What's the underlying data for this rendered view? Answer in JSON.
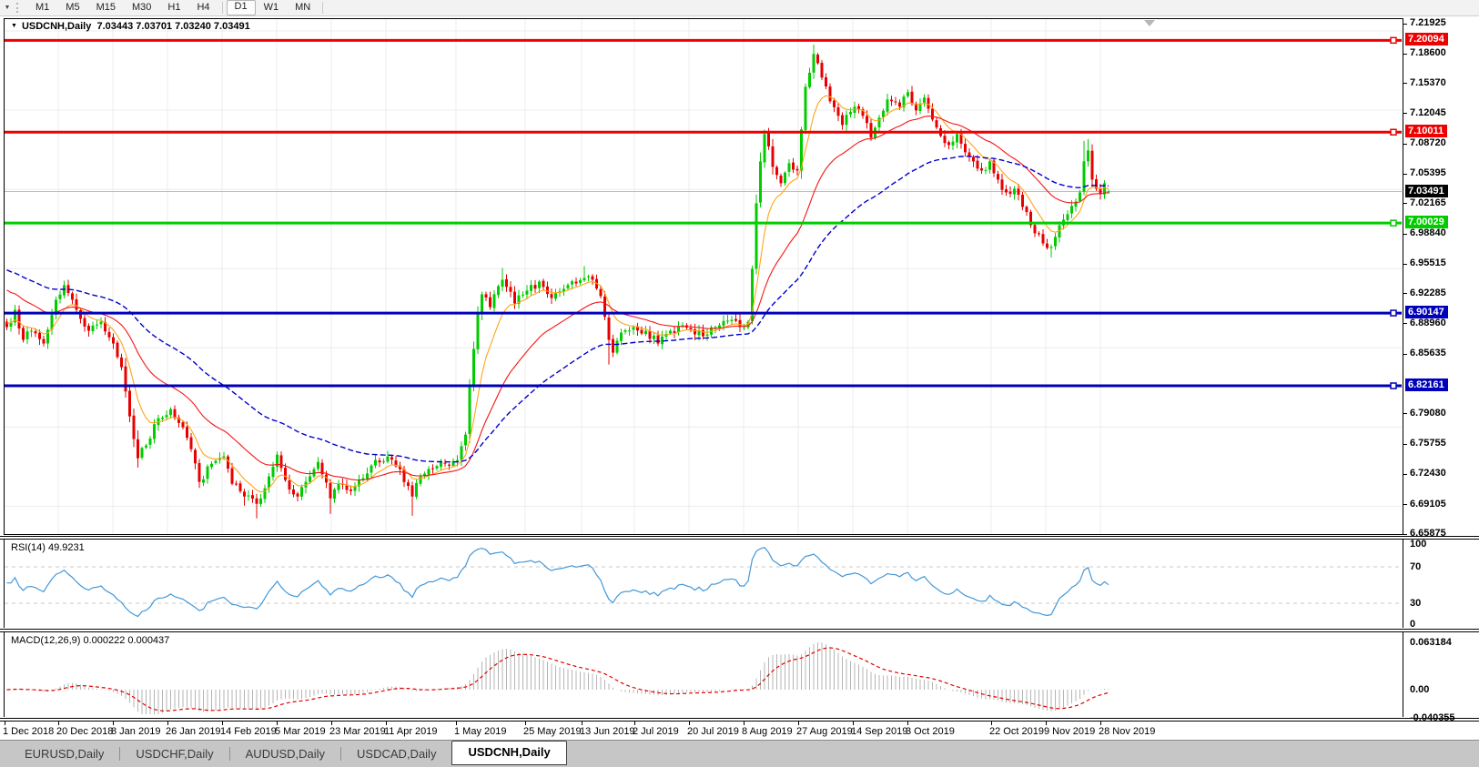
{
  "toolbar": {
    "timeframes": [
      "M1",
      "M5",
      "M15",
      "M30",
      "H1",
      "H4",
      "D1",
      "W1",
      "MN"
    ],
    "active_timeframe": "D1",
    "group_separator_after": "H4"
  },
  "icons": {
    "chart_dropdown": "▼",
    "title_marker": "▼",
    "shift_marker": "▼"
  },
  "chart": {
    "title_symbol": "USDCNH,Daily",
    "title_ohlc": "7.03443 7.03701 7.03240 7.03491"
  },
  "indicators": {
    "rsi_label": "RSI(14) 49.9231",
    "macd_label": "MACD(12,26,9) 0.000222 0.000437"
  },
  "tabs": {
    "items": [
      {
        "label": "EURUSD,Daily",
        "active": false
      },
      {
        "label": "USDCHF,Daily",
        "active": false
      },
      {
        "label": "AUDUSD,Daily",
        "active": false
      },
      {
        "label": "USDCAD,Daily",
        "active": false
      },
      {
        "label": "USDCNH,Daily",
        "active": true
      }
    ]
  },
  "colors": {
    "up_candle": "#00CC00",
    "down_candle": "#E80000",
    "hline_red": "#EE0000",
    "hline_green": "#00CC00",
    "hline_blue": "#0000BB",
    "current_price_line": "#BDBDBD",
    "grid": "#ECECEC",
    "rsi_line": "#4298D8",
    "rsi_levels": "#C8C8C8",
    "macd_hist": "#B4B4B4",
    "macd_signal": "#E00000"
  },
  "chart_data": {
    "type": "candlestick",
    "symbol": "USDCNH",
    "timeframe": "Daily",
    "last_bar": {
      "open": 7.03443,
      "high": 7.03701,
      "low": 7.0324,
      "close": 7.03491
    },
    "y_axis": {
      "tick_labels": [
        "7.21925",
        "7.18600",
        "7.15370",
        "7.12045",
        "7.08720",
        "7.05395",
        "7.02165",
        "6.98840",
        "6.95515",
        "6.92285",
        "6.88960",
        "6.85635",
        "6.79080",
        "6.75755",
        "6.72430",
        "6.69105",
        "6.65875"
      ]
    },
    "x_axis": {
      "labels": [
        [
          "1 Dec 2018",
          3
        ],
        [
          "20 Dec 2018",
          62
        ],
        [
          "8 Jan 2019",
          122
        ],
        [
          "26 Jan 2019",
          182
        ],
        [
          "14 Feb 2019",
          242
        ],
        [
          "5 Mar 2019",
          302
        ],
        [
          "23 Mar 2019",
          362
        ],
        [
          "11 Apr 2019",
          422
        ],
        [
          "1 May 2019",
          499
        ],
        [
          "25 May 2019",
          575
        ],
        [
          "13 Jun 2019",
          637
        ],
        [
          "2 Jul 2019",
          695
        ],
        [
          "20 Jul 2019",
          755
        ],
        [
          "8 Aug 2019",
          815
        ],
        [
          "27 Aug 2019",
          875
        ],
        [
          "14 Sep 2019",
          935
        ],
        [
          "3 Oct 2019",
          995
        ],
        [
          "22 Oct 2019",
          1087
        ],
        [
          "9 Nov 2019",
          1147
        ],
        [
          "28 Nov 2019",
          1207
        ]
      ]
    },
    "grid_h_prices": [
      7.2113,
      7.1243,
      7.0373,
      6.9503,
      6.8633,
      6.7763,
      6.6893
    ],
    "hlines": [
      {
        "label": "7.20094",
        "price": 7.20094,
        "color": "#EE0000"
      },
      {
        "label": "7.10011",
        "price": 7.10011,
        "color": "#EE0000"
      },
      {
        "label": "7.00029",
        "price": 7.00029,
        "color": "#00CC00"
      },
      {
        "label": "6.90147",
        "price": 6.90147,
        "color": "#0000BB"
      },
      {
        "label": "6.82161",
        "price": 6.82161,
        "color": "#0000BB"
      }
    ],
    "current_price": {
      "label": "7.03491",
      "price": 7.03491,
      "bg": "#000000"
    },
    "candles": {
      "count": 270,
      "spacing": 4.5,
      "body_width": 3,
      "seed": 7,
      "noise": 0.0045,
      "close_anchors": [
        [
          0,
          6.886
        ],
        [
          2,
          6.905
        ],
        [
          4,
          6.872
        ],
        [
          6,
          6.882
        ],
        [
          9,
          6.868
        ],
        [
          12,
          6.916
        ],
        [
          14,
          6.932
        ],
        [
          17,
          6.905
        ],
        [
          20,
          6.882
        ],
        [
          23,
          6.892
        ],
        [
          26,
          6.868
        ],
        [
          28,
          6.842
        ],
        [
          30,
          6.788
        ],
        [
          32,
          6.742
        ],
        [
          34,
          6.756
        ],
        [
          37,
          6.786
        ],
        [
          40,
          6.796
        ],
        [
          43,
          6.776
        ],
        [
          45,
          6.752
        ],
        [
          47,
          6.716
        ],
        [
          50,
          6.736
        ],
        [
          53,
          6.744
        ],
        [
          55,
          6.714
        ],
        [
          58,
          6.7
        ],
        [
          61,
          6.692
        ],
        [
          64,
          6.722
        ],
        [
          66,
          6.746
        ],
        [
          68,
          6.718
        ],
        [
          71,
          6.7
        ],
        [
          73,
          6.716
        ],
        [
          76,
          6.738
        ],
        [
          79,
          6.698
        ],
        [
          81,
          6.714
        ],
        [
          84,
          6.706
        ],
        [
          86,
          6.718
        ],
        [
          89,
          6.734
        ],
        [
          93,
          6.744
        ],
        [
          96,
          6.73
        ],
        [
          99,
          6.7
        ],
        [
          101,
          6.722
        ],
        [
          104,
          6.73
        ],
        [
          107,
          6.736
        ],
        [
          110,
          6.74
        ],
        [
          112,
          6.768
        ],
        [
          113,
          6.82
        ],
        [
          114,
          6.862
        ],
        [
          115,
          6.9
        ],
        [
          116,
          6.922
        ],
        [
          118,
          6.908
        ],
        [
          121,
          6.938
        ],
        [
          124,
          6.912
        ],
        [
          127,
          6.926
        ],
        [
          130,
          6.936
        ],
        [
          133,
          6.918
        ],
        [
          136,
          6.928
        ],
        [
          139,
          6.934
        ],
        [
          141,
          6.94
        ],
        [
          143,
          6.938
        ],
        [
          145,
          6.92
        ],
        [
          147,
          6.872
        ],
        [
          148,
          6.858
        ],
        [
          150,
          6.88
        ],
        [
          153,
          6.886
        ],
        [
          156,
          6.882
        ],
        [
          159,
          6.868
        ],
        [
          162,
          6.882
        ],
        [
          165,
          6.888
        ],
        [
          168,
          6.878
        ],
        [
          171,
          6.878
        ],
        [
          174,
          6.888
        ],
        [
          177,
          6.894
        ],
        [
          179,
          6.886
        ],
        [
          181,
          6.892
        ],
        [
          182,
          6.95
        ],
        [
          183,
          7.022
        ],
        [
          184,
          7.068
        ],
        [
          185,
          7.098
        ],
        [
          187,
          7.062
        ],
        [
          189,
          7.044
        ],
        [
          191,
          7.066
        ],
        [
          193,
          7.058
        ],
        [
          195,
          7.15
        ],
        [
          197,
          7.186
        ],
        [
          199,
          7.16
        ],
        [
          201,
          7.134
        ],
        [
          204,
          7.108
        ],
        [
          207,
          7.128
        ],
        [
          209,
          7.118
        ],
        [
          211,
          7.094
        ],
        [
          213,
          7.116
        ],
        [
          215,
          7.136
        ],
        [
          218,
          7.128
        ],
        [
          220,
          7.144
        ],
        [
          222,
          7.124
        ],
        [
          224,
          7.138
        ],
        [
          226,
          7.114
        ],
        [
          228,
          7.096
        ],
        [
          230,
          7.086
        ],
        [
          232,
          7.098
        ],
        [
          234,
          7.078
        ],
        [
          236,
          7.068
        ],
        [
          238,
          7.058
        ],
        [
          240,
          7.068
        ],
        [
          242,
          7.048
        ],
        [
          244,
          7.034
        ],
        [
          246,
          7.038
        ],
        [
          248,
          7.018
        ],
        [
          250,
          6.998
        ],
        [
          252,
          6.988
        ],
        [
          253,
          6.978
        ],
        [
          255,
          6.974
        ],
        [
          257,
          6.998
        ],
        [
          259,
          7.01
        ],
        [
          261,
          7.024
        ],
        [
          262,
          7.034
        ],
        [
          263,
          7.068
        ],
        [
          264,
          7.08
        ],
        [
          265,
          7.048
        ],
        [
          266,
          7.038
        ],
        [
          267,
          7.032
        ],
        [
          268,
          7.044
        ],
        [
          269,
          7.0349
        ]
      ],
      "high_overrides": {
        "121": 6.951,
        "141": 6.953,
        "185": 7.103,
        "197": 7.1962,
        "263": 7.0905,
        "264": 7.0925
      },
      "low_overrides": {
        "58": 6.69,
        "61": 6.676,
        "79": 6.681,
        "99": 6.679,
        "147": 6.845,
        "255": 6.9625
      }
    },
    "moving_averages": [
      {
        "name": "fast",
        "color": "#FFA518",
        "alpha": 0.22,
        "init": 6.892,
        "dashed": false
      },
      {
        "name": "mid",
        "color": "#F51515",
        "alpha": 0.075,
        "init": 6.93,
        "dashed": false
      },
      {
        "name": "slow",
        "color": "#0000CC",
        "alpha": 0.034,
        "init": 6.951,
        "dashed": true
      }
    ],
    "rsi": {
      "period": 14,
      "levels": [
        70,
        30
      ],
      "color": "#4298D8",
      "scale_labels": [
        [
          "100",
          100
        ],
        [
          "70",
          70
        ],
        [
          "30",
          30
        ],
        [
          "0",
          0
        ]
      ]
    },
    "macd": {
      "fast": 12,
      "slow": 26,
      "signal": 9,
      "max_value": 0.063184,
      "scale_labels": [
        [
          "0.063184",
          0.063184
        ],
        [
          "0.00",
          0
        ],
        [
          "-0.040355",
          -0.040355
        ]
      ]
    }
  }
}
